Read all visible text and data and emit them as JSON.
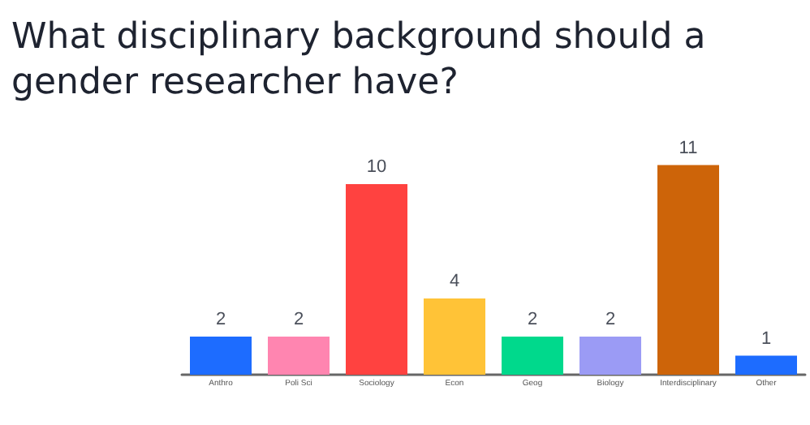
{
  "chart_data": {
    "type": "bar",
    "title": "What disciplinary background should a gender researcher have?",
    "categories": [
      "Anthro",
      "Poli Sci",
      "Sociology",
      "Econ",
      "Geog",
      "Biology",
      "Interdisciplinary",
      "Other"
    ],
    "values": [
      2,
      2,
      10,
      4,
      2,
      2,
      11,
      1
    ],
    "colors": [
      "#1d6cff",
      "#ff85b0",
      "#ff4240",
      "#ffc337",
      "#00d98c",
      "#9b9bf5",
      "#cd6409",
      "#1d6cff"
    ],
    "data_labels": true
  }
}
